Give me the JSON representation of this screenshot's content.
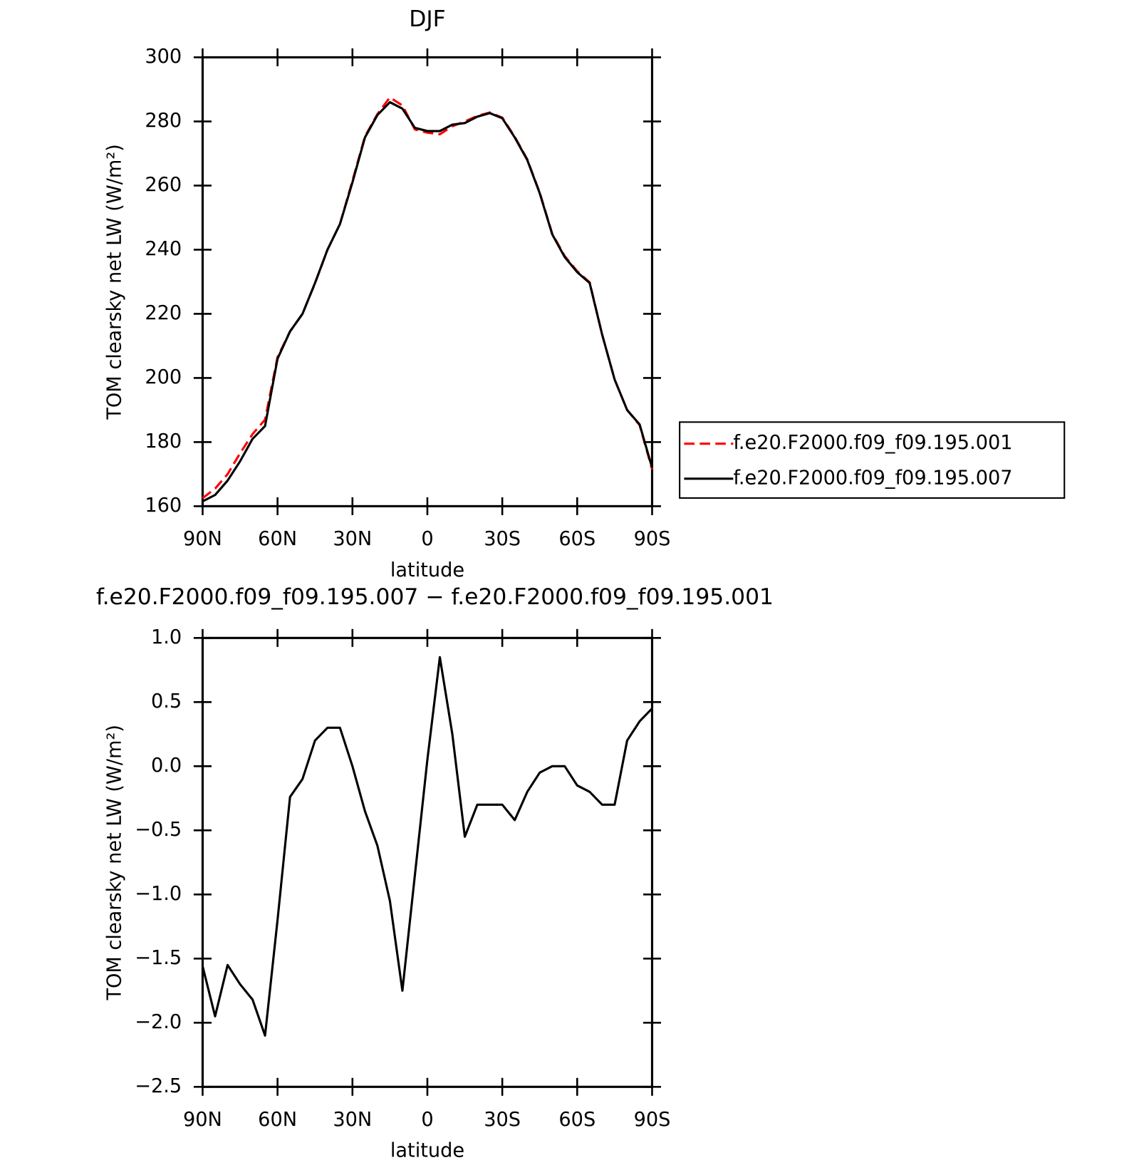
{
  "chart_data": [
    {
      "type": "line",
      "title": "DJF",
      "xlabel": "latitude",
      "ylabel": "TOM clearsky net LW (W/m²)",
      "x": [
        90,
        85,
        80,
        75,
        70,
        65,
        60,
        55,
        50,
        45,
        40,
        35,
        30,
        25,
        20,
        15,
        10,
        5,
        0,
        -5,
        -10,
        -15,
        -20,
        -25,
        -30,
        -35,
        -40,
        -45,
        -50,
        -55,
        -60,
        -65,
        -70,
        -75,
        -80,
        -85,
        -90
      ],
      "series": [
        {
          "name": "f.e20.F2000.f09_f09.195.001",
          "color": "#ff0000",
          "linestyle": "dashed",
          "values": [
            162.5,
            165.5,
            170,
            176.5,
            182.5,
            187,
            206.5,
            214.5,
            220,
            229.5,
            240,
            248,
            261.5,
            275.3,
            282.3,
            287.5,
            285,
            277.5,
            276.5,
            276,
            278.5,
            280,
            281.7,
            282.8,
            281.2,
            275.2,
            268.2,
            257.8,
            245,
            238,
            233.3,
            229.8,
            213.5,
            199.5,
            190,
            185.3,
            171.5
          ]
        },
        {
          "name": "f.e20.F2000.f09_f09.195.007",
          "color": "#000000",
          "linestyle": "solid",
          "values": [
            161.5,
            163.5,
            168,
            174,
            181,
            185,
            206,
            214.5,
            220,
            229.6,
            240,
            248,
            261,
            275,
            282,
            286,
            284,
            278,
            277,
            277,
            279,
            279.5,
            281.5,
            282.6,
            281,
            275,
            268,
            257.6,
            244.8,
            237.7,
            233,
            229.6,
            213.5,
            199.5,
            190,
            185.5,
            172
          ]
        }
      ],
      "xlim": [
        90,
        -90
      ],
      "xticks": [
        {
          "value": 90,
          "label": "90N"
        },
        {
          "value": 60,
          "label": "60N"
        },
        {
          "value": 30,
          "label": "30N"
        },
        0,
        {
          "value": -30,
          "label": "30S"
        },
        {
          "value": -60,
          "label": "60S"
        },
        {
          "value": -90,
          "label": "90S"
        }
      ],
      "ylim": [
        160,
        300
      ],
      "yticks": [
        160,
        180,
        200,
        220,
        240,
        260,
        280,
        300
      ],
      "legend": "right"
    },
    {
      "type": "line",
      "title": "f.e20.F2000.f09_f09.195.007 − f.e20.F2000.f09_f09.195.001",
      "xlabel": "latitude",
      "ylabel": "TOM clearsky net LW (W/m²)",
      "x": [
        90,
        85,
        80,
        75,
        70,
        65,
        60,
        55,
        50,
        45,
        40,
        35,
        30,
        25,
        20,
        15,
        10,
        5,
        0,
        -5,
        -10,
        -15,
        -20,
        -25,
        -30,
        -35,
        -40,
        -45,
        -50,
        -55,
        -60,
        -65,
        -70,
        -75,
        -80,
        -85,
        -90
      ],
      "series": [
        {
          "color": "#000000",
          "linestyle": "solid",
          "values": [
            -1.56,
            -1.95,
            -1.55,
            -1.7,
            -1.82,
            -2.1,
            -1.2,
            -0.24,
            -0.1,
            0.2,
            0.3,
            0.3,
            0.0,
            -0.35,
            -0.62,
            -1.05,
            -1.75,
            -0.85,
            0.05,
            0.85,
            0.25,
            -0.55,
            -0.3,
            -0.3,
            -0.3,
            -0.42,
            -0.2,
            -0.05,
            0.0,
            0.0,
            -0.15,
            -0.2,
            -0.3,
            -0.3,
            0.2,
            0.35,
            0.45
          ]
        }
      ],
      "xlim": [
        90,
        -90
      ],
      "xticks": [
        {
          "value": 90,
          "label": "90N"
        },
        {
          "value": 60,
          "label": "60N"
        },
        {
          "value": 30,
          "label": "30N"
        },
        0,
        {
          "value": -30,
          "label": "30S"
        },
        {
          "value": -60,
          "label": "60S"
        },
        {
          "value": -90,
          "label": "90S"
        }
      ],
      "ylim": [
        -2.5,
        1.0
      ],
      "yticks": [
        {
          "value": -2.5,
          "label": "−2.5"
        },
        {
          "value": -2.0,
          "label": "−2.0"
        },
        {
          "value": -1.5,
          "label": "−1.5"
        },
        {
          "value": -1.0,
          "label": "−1.0"
        },
        {
          "value": -0.5,
          "label": "−0.5"
        },
        {
          "value": 0.0,
          "label": "0.0"
        },
        0.5,
        {
          "value": 1.0,
          "label": "1.0"
        }
      ]
    }
  ]
}
